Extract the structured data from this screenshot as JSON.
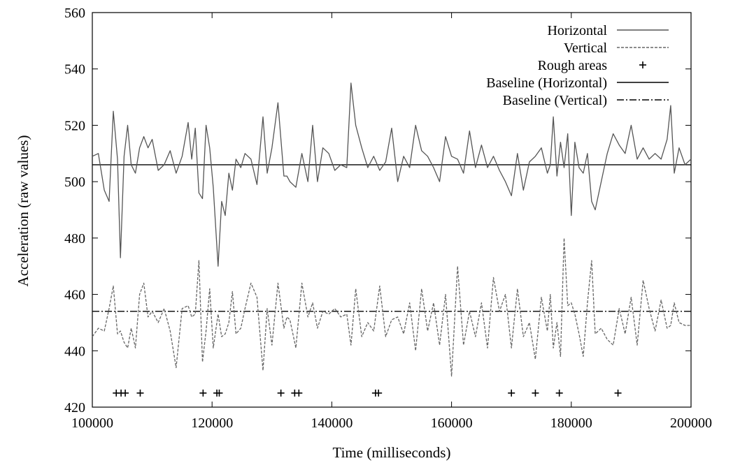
{
  "chart_data": {
    "type": "line",
    "xlabel": "Time (milliseconds)",
    "ylabel": "Acceleration (raw values)",
    "xlim": [
      100000,
      200000
    ],
    "ylim": [
      420,
      560
    ],
    "x_ticks": [
      "100000",
      "120000",
      "140000",
      "160000",
      "180000",
      "200000"
    ],
    "y_ticks": [
      "420",
      "440",
      "460",
      "480",
      "500",
      "520",
      "540",
      "560"
    ],
    "grid": false,
    "legend_position": "top-right",
    "series": [
      {
        "name": "Horizontal",
        "style": "solid",
        "color": "#555555",
        "x": [
          100000,
          101000,
          102000,
          102800,
          103500,
          104200,
          104700,
          105300,
          105900,
          106500,
          107200,
          107900,
          108600,
          109300,
          110000,
          111000,
          112000,
          113000,
          114000,
          115000,
          116000,
          116600,
          117200,
          117800,
          118400,
          119000,
          119600,
          120200,
          121000,
          121600,
          122200,
          122800,
          123400,
          124000,
          124800,
          125500,
          126500,
          127500,
          128500,
          129200,
          130000,
          131000,
          132000,
          132500,
          133000,
          134000,
          135000,
          136000,
          136800,
          137600,
          138500,
          139500,
          140500,
          141500,
          142500,
          143200,
          144000,
          145000,
          146000,
          147000,
          148000,
          149000,
          150000,
          151000,
          152000,
          153000,
          154000,
          155000,
          156000,
          157000,
          158000,
          159000,
          160000,
          161000,
          162000,
          163000,
          164000,
          165000,
          166000,
          167000,
          168000,
          169000,
          170000,
          171000,
          172000,
          173000,
          174000,
          175000,
          176000,
          176500,
          177000,
          177600,
          178200,
          178800,
          179400,
          180000,
          180600,
          181300,
          182000,
          182700,
          183400,
          184000,
          185000,
          186000,
          187000,
          188000,
          189000,
          190000,
          191000,
          192000,
          193000,
          194000,
          195000,
          196000,
          196600,
          197200,
          198000,
          199000,
          200000
        ],
        "values": [
          509,
          510,
          497,
          493,
          525,
          508,
          473,
          509,
          520,
          506,
          503,
          512,
          516,
          512,
          515,
          504,
          506,
          511,
          503,
          509,
          521,
          508,
          519,
          496,
          494,
          520,
          512,
          498,
          470,
          493,
          488,
          503,
          497,
          508,
          505,
          510,
          508,
          499,
          523,
          503,
          512,
          528,
          502,
          502,
          500,
          498,
          510,
          500,
          520,
          500,
          512,
          510,
          504,
          506,
          505,
          535,
          520,
          512,
          505,
          509,
          504,
          507,
          519,
          500,
          509,
          505,
          520,
          511,
          509,
          505,
          500,
          516,
          509,
          508,
          503,
          518,
          505,
          513,
          505,
          509,
          504,
          500,
          495,
          510,
          497,
          507,
          509,
          512,
          503,
          506,
          523,
          502,
          514,
          505,
          517,
          488,
          514,
          505,
          503,
          510,
          493,
          490,
          500,
          510,
          517,
          513,
          510,
          520,
          508,
          512,
          508,
          510,
          508,
          515,
          527,
          503,
          512,
          506,
          508
        ]
      },
      {
        "name": "Vertical",
        "style": "dashed",
        "color": "#666666",
        "x": [
          100000,
          101000,
          102000,
          102800,
          103500,
          104200,
          104700,
          105300,
          105900,
          106500,
          107200,
          107900,
          108600,
          109300,
          110000,
          111000,
          112000,
          113000,
          114000,
          115000,
          116000,
          116600,
          117200,
          117800,
          118400,
          119000,
          119600,
          120200,
          121000,
          121600,
          122200,
          122800,
          123400,
          124000,
          124800,
          125500,
          126500,
          127500,
          128500,
          129200,
          130000,
          131000,
          132000,
          132500,
          133000,
          134000,
          135000,
          136000,
          136800,
          137600,
          138500,
          139500,
          140500,
          141500,
          142500,
          143200,
          144000,
          145000,
          146000,
          147000,
          148000,
          149000,
          150000,
          151000,
          152000,
          153000,
          154000,
          155000,
          156000,
          157000,
          158000,
          159000,
          160000,
          161000,
          162000,
          163000,
          164000,
          165000,
          166000,
          167000,
          168000,
          169000,
          170000,
          171000,
          172000,
          173000,
          174000,
          175000,
          176000,
          176500,
          177000,
          177600,
          178200,
          178800,
          179400,
          180000,
          180600,
          181300,
          182000,
          182700,
          183400,
          184000,
          185000,
          186000,
          187000,
          188000,
          189000,
          190000,
          191000,
          192000,
          193000,
          194000,
          195000,
          196000,
          196600,
          197200,
          198000,
          199000,
          200000
        ],
        "values": [
          445,
          448,
          447,
          455,
          463,
          446,
          447,
          443,
          441,
          448,
          441,
          460,
          464,
          452,
          454,
          450,
          455,
          447,
          434,
          455,
          456,
          452,
          453,
          472,
          436,
          447,
          462,
          441,
          453,
          445,
          446,
          450,
          461,
          446,
          448,
          455,
          464,
          459,
          433,
          455,
          442,
          464,
          448,
          452,
          451,
          441,
          464,
          452,
          457,
          448,
          454,
          453,
          455,
          452,
          453,
          442,
          462,
          445,
          450,
          447,
          463,
          445,
          451,
          452,
          446,
          457,
          440,
          462,
          447,
          457,
          442,
          460,
          431,
          470,
          442,
          454,
          445,
          457,
          441,
          466,
          454,
          460,
          441,
          462,
          445,
          450,
          437,
          459,
          447,
          460,
          441,
          450,
          438,
          480,
          456,
          457,
          453,
          446,
          438,
          457,
          472,
          446,
          448,
          444,
          442,
          455,
          446,
          459,
          442,
          465,
          455,
          447,
          458,
          448,
          449,
          457,
          450,
          449,
          449
        ]
      },
      {
        "name": "Rough areas",
        "style": "points",
        "color": "#000000",
        "x": [
          104000,
          104800,
          105500,
          108000,
          118500,
          120800,
          121200,
          131500,
          133800,
          134500,
          147300,
          147800,
          170000,
          174000,
          178000,
          187800
        ],
        "values": [
          425,
          425,
          425,
          425,
          425,
          425,
          425,
          425,
          425,
          425,
          425,
          425,
          425,
          425,
          425,
          425
        ]
      },
      {
        "name": "Baseline (Horizontal)",
        "style": "solid",
        "color": "#000000",
        "x": [
          100000,
          200000
        ],
        "values": [
          506,
          506
        ]
      },
      {
        "name": "Baseline (Vertical)",
        "style": "dashdot",
        "color": "#000000",
        "x": [
          100000,
          200000
        ],
        "values": [
          454,
          454
        ]
      }
    ]
  }
}
